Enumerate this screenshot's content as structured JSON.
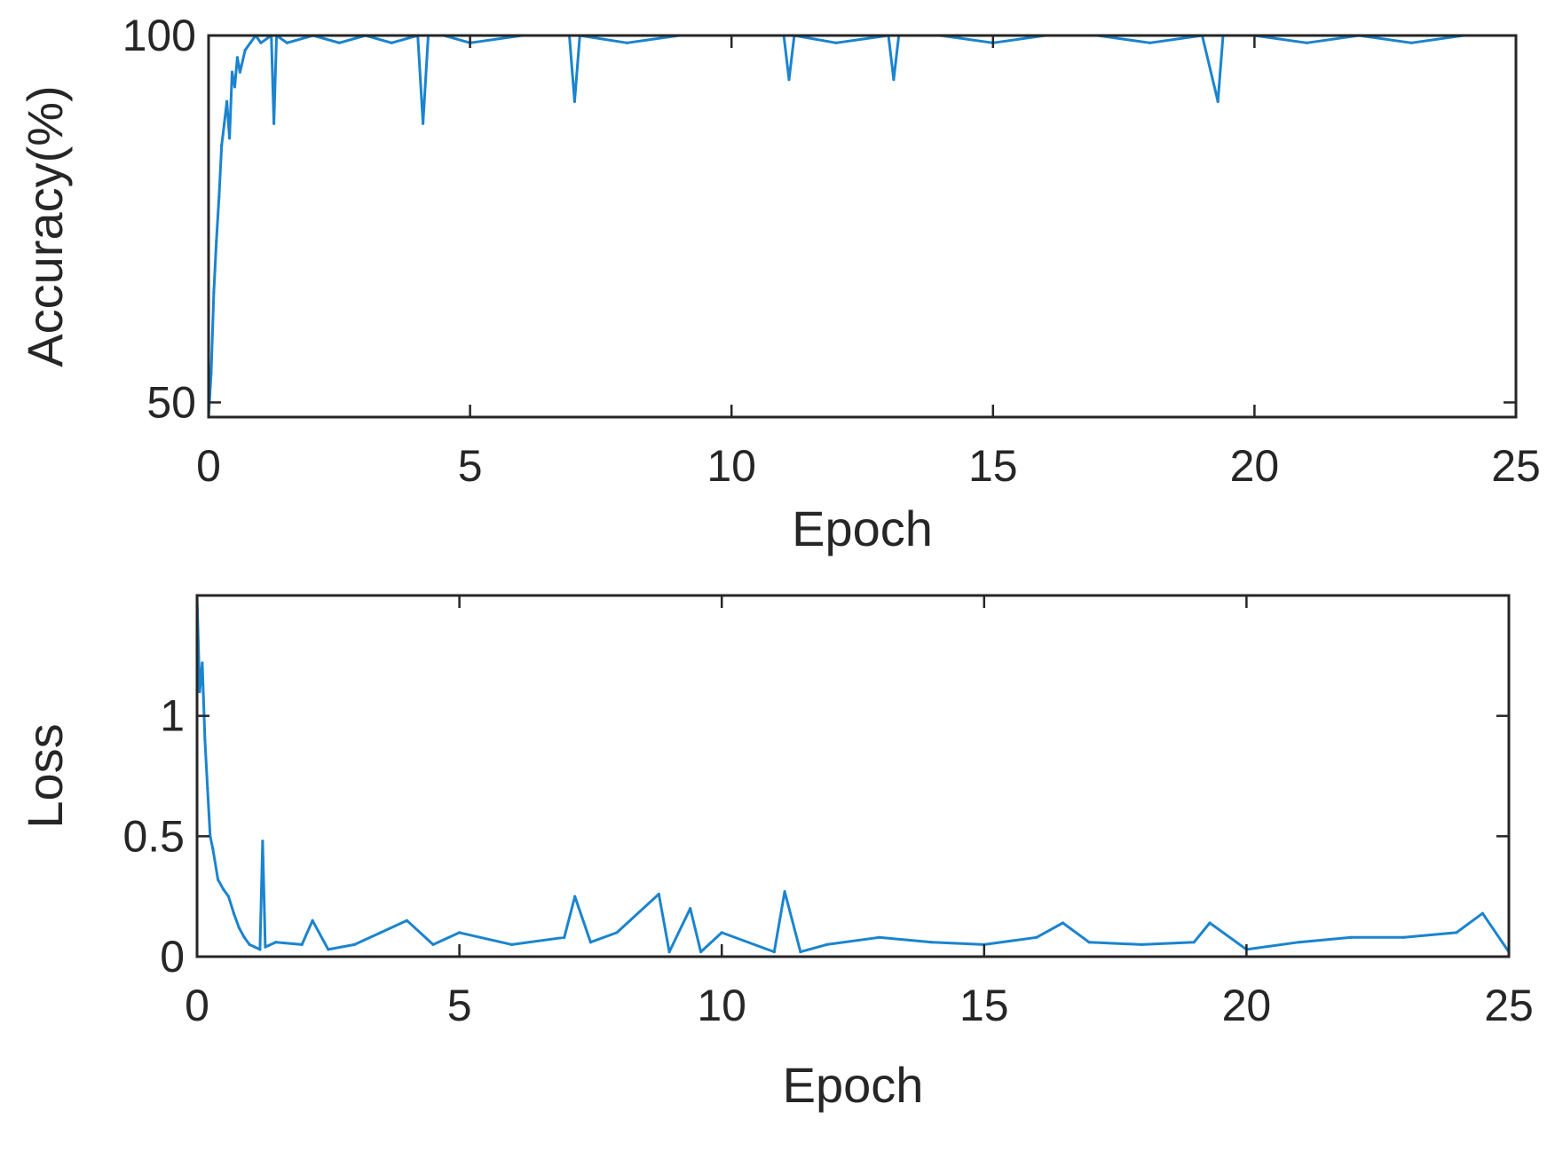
{
  "colors": {
    "series": "#1a84cf",
    "axis": "#262626",
    "background": "#ffffff"
  },
  "chart_data": [
    {
      "type": "line",
      "xlabel": "Epoch",
      "ylabel": "Accuracy(%)",
      "xlim": [
        0,
        25
      ],
      "ylim": [
        48,
        100
      ],
      "xticks": [
        0,
        5,
        10,
        15,
        20,
        25
      ],
      "xtick_labels": [
        "0",
        "5",
        "10",
        "15",
        "20",
        "25"
      ],
      "yticks": [
        50,
        100
      ],
      "ytick_labels": [
        "50",
        "100"
      ],
      "grid": false,
      "series": [
        {
          "x": [
            0,
            0.05,
            0.1,
            0.15,
            0.2,
            0.25,
            0.3,
            0.35,
            0.4,
            0.45,
            0.5,
            0.55,
            0.6,
            0.7,
            0.8,
            0.9,
            1.0,
            1.2,
            1.25,
            1.3,
            1.5,
            2.0,
            2.5,
            3.0,
            3.5,
            4.0,
            4.1,
            4.2,
            4.5,
            5.0,
            6.0,
            6.9,
            7.0,
            7.1,
            8.0,
            9.0,
            10.0,
            11.0,
            11.1,
            11.2,
            12.0,
            13.0,
            13.1,
            13.2,
            14.0,
            15.0,
            16.0,
            17.0,
            18.0,
            19.0,
            19.3,
            19.4,
            20.0,
            21.0,
            22.0,
            23.0,
            24.0,
            25.0
          ],
          "y": [
            48,
            54,
            65,
            72,
            78,
            85,
            88,
            91,
            86,
            95,
            93,
            97,
            95,
            98,
            99,
            100,
            99,
            100,
            88,
            100,
            99,
            100,
            99,
            100,
            99,
            100,
            88,
            100,
            100,
            99,
            100,
            100,
            91,
            100,
            99,
            100,
            100,
            100,
            94,
            100,
            99,
            100,
            94,
            100,
            100,
            99,
            100,
            100,
            99,
            100,
            91,
            100,
            100,
            99,
            100,
            99,
            100,
            100
          ]
        }
      ]
    },
    {
      "type": "line",
      "xlabel": "Epoch",
      "ylabel": "Loss",
      "xlim": [
        0,
        25
      ],
      "ylim": [
        0,
        1.5
      ],
      "xticks": [
        0,
        5,
        10,
        15,
        20,
        25
      ],
      "xtick_labels": [
        "0",
        "5",
        "10",
        "15",
        "20",
        "25"
      ],
      "yticks": [
        0,
        0.5,
        1
      ],
      "ytick_labels": [
        "0",
        "0.5",
        "1"
      ],
      "grid": false,
      "series": [
        {
          "x": [
            0,
            0.05,
            0.1,
            0.15,
            0.2,
            0.25,
            0.3,
            0.4,
            0.5,
            0.6,
            0.7,
            0.8,
            0.9,
            1.0,
            1.1,
            1.2,
            1.25,
            1.3,
            1.5,
            2.0,
            2.2,
            2.5,
            3.0,
            3.5,
            4.0,
            4.5,
            5.0,
            6.0,
            7.0,
            7.2,
            7.5,
            8.0,
            8.8,
            9.0,
            9.4,
            9.6,
            10.0,
            11.0,
            11.2,
            11.5,
            12.0,
            13.0,
            14.0,
            15.0,
            16.0,
            16.5,
            17.0,
            18.0,
            19.0,
            19.3,
            20.0,
            21.0,
            22.0,
            23.0,
            24.0,
            24.5,
            25.0
          ],
          "y": [
            1.5,
            1.1,
            1.22,
            0.9,
            0.7,
            0.5,
            0.45,
            0.32,
            0.28,
            0.25,
            0.18,
            0.12,
            0.08,
            0.05,
            0.04,
            0.03,
            0.48,
            0.04,
            0.06,
            0.05,
            0.15,
            0.03,
            0.05,
            0.1,
            0.15,
            0.05,
            0.1,
            0.05,
            0.08,
            0.25,
            0.06,
            0.1,
            0.26,
            0.02,
            0.2,
            0.02,
            0.1,
            0.02,
            0.27,
            0.02,
            0.05,
            0.08,
            0.06,
            0.05,
            0.08,
            0.14,
            0.06,
            0.05,
            0.06,
            0.14,
            0.03,
            0.06,
            0.08,
            0.08,
            0.1,
            0.18,
            0.02
          ]
        }
      ]
    }
  ]
}
